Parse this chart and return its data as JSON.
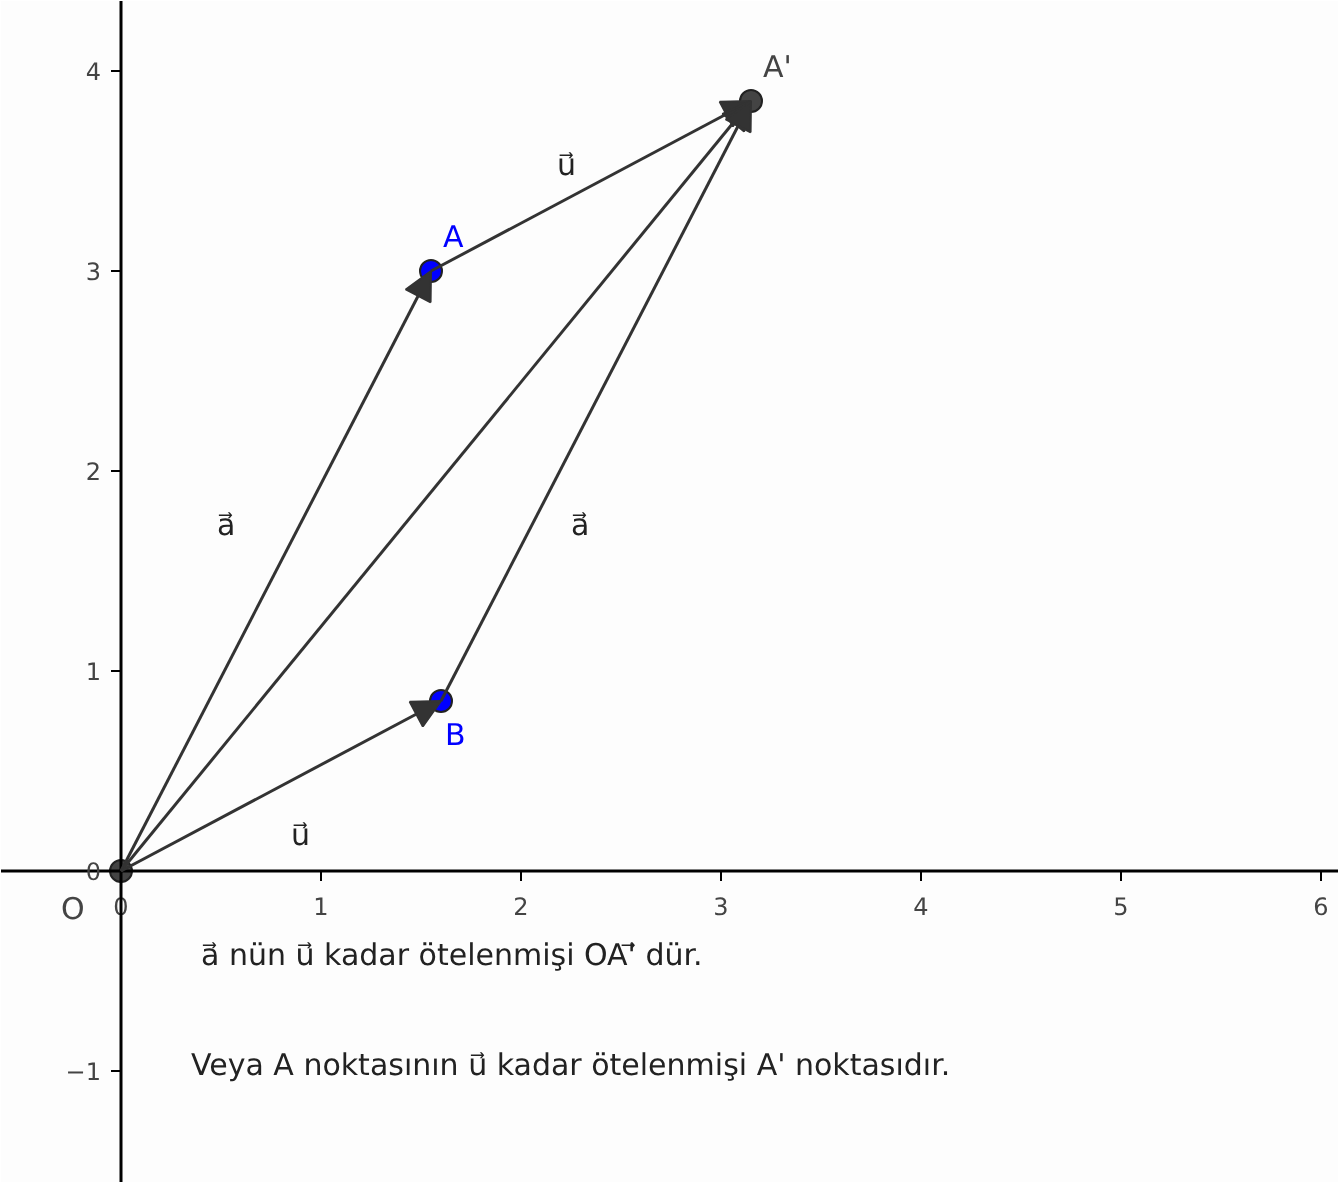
{
  "chart_data": {
    "type": "scatter",
    "xlim": [
      -0.6,
      6.09
    ],
    "ylim": [
      -1.56,
      4.35
    ],
    "xticks": [
      0,
      1,
      2,
      3,
      4,
      5,
      6
    ],
    "yticks": [
      -1,
      0,
      1,
      2,
      3,
      4
    ],
    "grid": false,
    "series": [
      {
        "marker": "circle",
        "x": [
          0,
          1.55,
          1.6,
          3.15
        ],
        "values": [
          0,
          3,
          0.85,
          3.85
        ],
        "colors": [
          "#444444",
          "#0000ff",
          "#0000ff",
          "#444444"
        ],
        "value_labels": [
          "O",
          "A",
          "B",
          "A'"
        ]
      }
    ],
    "annotations": [
      "a⃗",
      "u⃗",
      "a⃗",
      "u⃗",
      "a⃗ nün  u⃗  kadar ötelenmişi  OA'⃗  dür.",
      "Veya A noktasının  u⃗  kadar ötelenmişi A' noktasıdır."
    ]
  }
}
